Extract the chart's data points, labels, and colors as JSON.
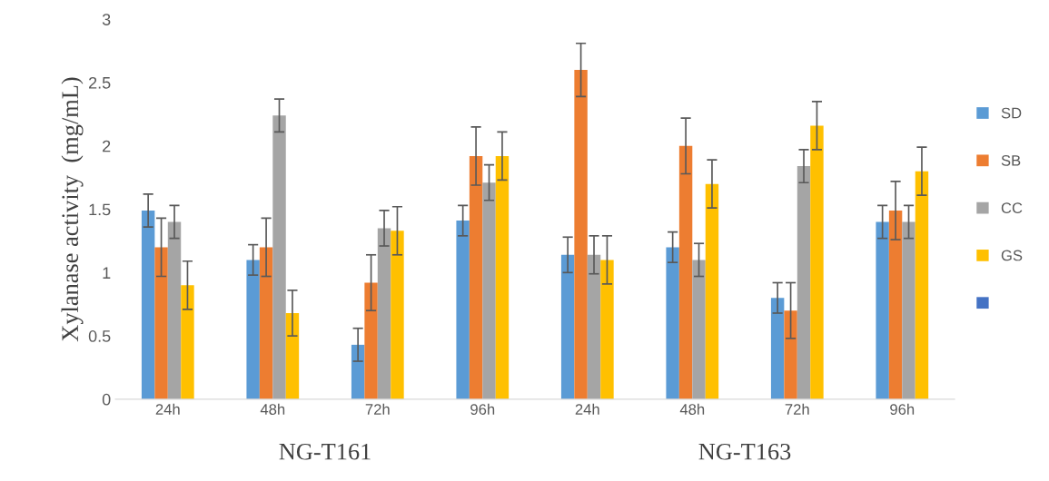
{
  "chart_data": {
    "type": "bar",
    "ylabel": "Xylanase activity  (mg/mL)",
    "categories": [
      "24h",
      "48h",
      "72h",
      "96h",
      "24h",
      "48h",
      "72h",
      "96h"
    ],
    "series": [
      {
        "name": "SD",
        "color": "#5b9bd5",
        "values": [
          1.49,
          1.1,
          0.43,
          1.41,
          1.14,
          1.2,
          0.8,
          1.4
        ],
        "errors": [
          0.13,
          0.12,
          0.13,
          0.12,
          0.14,
          0.12,
          0.12,
          0.13
        ]
      },
      {
        "name": "SB",
        "color": "#ed7d31",
        "values": [
          1.2,
          1.2,
          0.92,
          1.92,
          2.6,
          2.0,
          0.7,
          1.49
        ],
        "errors": [
          0.23,
          0.23,
          0.22,
          0.23,
          0.21,
          0.22,
          0.22,
          0.23
        ]
      },
      {
        "name": "CC",
        "color": "#a5a5a5",
        "values": [
          1.4,
          2.24,
          1.35,
          1.71,
          1.14,
          1.1,
          1.84,
          1.4
        ],
        "errors": [
          0.13,
          0.13,
          0.14,
          0.14,
          0.15,
          0.13,
          0.13,
          0.13
        ]
      },
      {
        "name": "GS",
        "color": "#ffc000",
        "values": [
          0.9,
          0.68,
          1.33,
          1.92,
          1.1,
          1.7,
          2.16,
          1.8
        ],
        "errors": [
          0.19,
          0.18,
          0.19,
          0.19,
          0.19,
          0.19,
          0.19,
          0.19
        ]
      },
      {
        "color": "#4472c4",
        "values": [
          null,
          null,
          null,
          null,
          null,
          null,
          null,
          null
        ]
      }
    ],
    "annotations": [
      "NG-T161",
      "NG-T163"
    ],
    "ylim": [
      0,
      3
    ],
    "yticks": [
      0,
      0.5,
      1,
      1.5,
      2,
      2.5,
      3
    ],
    "legend": "right",
    "grid": false
  }
}
